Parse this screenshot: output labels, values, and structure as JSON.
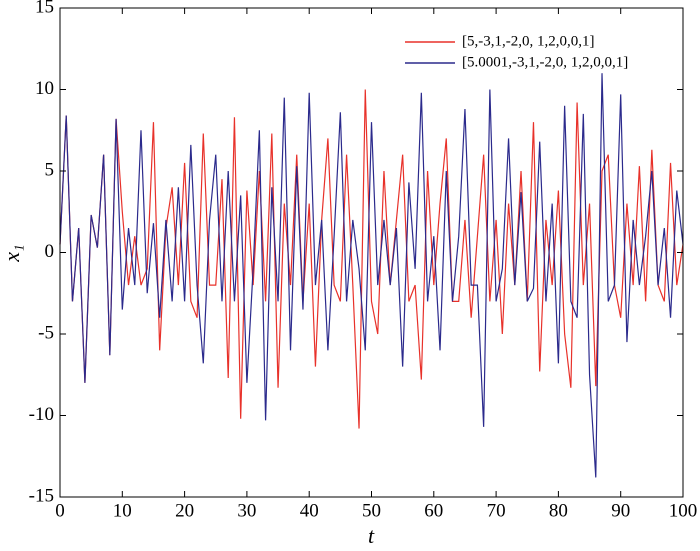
{
  "chart_data": {
    "type": "line",
    "xlabel": "t",
    "ylabel": "x₁",
    "x": [
      0,
      1,
      2,
      3,
      4,
      5,
      6,
      7,
      8,
      9,
      10,
      11,
      12,
      13,
      14,
      15,
      16,
      17,
      18,
      19,
      20,
      21,
      22,
      23,
      24,
      25,
      26,
      27,
      28,
      29,
      30,
      31,
      32,
      33,
      34,
      35,
      36,
      37,
      38,
      39,
      40,
      41,
      42,
      43,
      44,
      45,
      46,
      47,
      48,
      49,
      50,
      51,
      52,
      53,
      54,
      55,
      56,
      57,
      58,
      59,
      60,
      61,
      62,
      63,
      64,
      65,
      66,
      67,
      68,
      69,
      70,
      71,
      72,
      73,
      74,
      75,
      76,
      77,
      78,
      79,
      80,
      81,
      82,
      83,
      84,
      85,
      86,
      87,
      88,
      89,
      90,
      91,
      92,
      93,
      94,
      95,
      96,
      97,
      98,
      99,
      100
    ],
    "series": [
      {
        "name": "[5,-3,1,-2,0, 1,2,0,0,1]",
        "color": "#e8312a",
        "values": [
          0.5,
          8.4,
          -3,
          1.5,
          -8,
          2.3,
          0.3,
          6,
          -6.3,
          8.2,
          2.5,
          -2,
          1,
          -2,
          -1,
          8,
          -6,
          1.5,
          4,
          -2,
          5.5,
          -3,
          -4,
          7.3,
          -2,
          -2,
          4.5,
          -7.7,
          8.3,
          -10.2,
          3.8,
          -2,
          5,
          -3,
          7.3,
          -8.3,
          3,
          -2,
          6,
          -3,
          3,
          -7,
          2,
          7,
          -2,
          -3,
          6,
          -2,
          -10.8,
          10,
          -3,
          -5,
          5,
          -2,
          2,
          6,
          -3,
          -2,
          -7.8,
          5,
          -2,
          3,
          7,
          -3,
          -3,
          2,
          -4,
          1,
          6,
          -3,
          2,
          -5,
          3,
          -2,
          5,
          -3,
          8,
          -7.3,
          2,
          -2,
          3.8,
          -5,
          -8.3,
          9.2,
          -2,
          3,
          -8.2,
          5,
          6,
          -2,
          -4,
          3,
          -2,
          5.3,
          -3,
          6.3,
          -2,
          -3,
          5.5,
          -2,
          0.5
        ]
      },
      {
        "name": "[5.0001,-3,1,-2,0, 1,2,0,0,1]",
        "color": "#2b2a8c",
        "values": [
          0.5,
          8.4,
          -3,
          1.5,
          -8,
          2.3,
          0.3,
          6,
          -6.3,
          8.2,
          -3.5,
          1.5,
          -2,
          7.5,
          -2.5,
          1.8,
          -4,
          2,
          -3,
          4,
          -3,
          6.6,
          -2,
          -6.8,
          2,
          6,
          -3,
          5,
          -3,
          3.5,
          -8,
          -1,
          7.5,
          -10.3,
          4,
          -3,
          9.5,
          -6,
          5.3,
          -3.5,
          9.8,
          -2,
          2,
          -6,
          1,
          8.6,
          -3,
          2,
          -1,
          -6,
          8,
          -2,
          2,
          -2,
          1.5,
          -7,
          4.3,
          -1,
          9.8,
          -3,
          1,
          -6,
          5,
          -3,
          1,
          8.8,
          -2,
          -2,
          -10.7,
          10,
          -3,
          -1,
          7,
          -2,
          3.7,
          -3,
          -2.2,
          6.8,
          -3,
          3,
          -6.8,
          9,
          -3,
          -4,
          8.5,
          -7.5,
          -13.8,
          11,
          -3,
          -2,
          9.7,
          -5.5,
          2,
          -2,
          1,
          5,
          -2,
          1.5,
          -4,
          3.8,
          0.5
        ]
      }
    ],
    "xlim": [
      0,
      100
    ],
    "xticks": [
      0,
      10,
      20,
      30,
      40,
      50,
      60,
      70,
      80,
      90,
      100
    ],
    "ylim": [
      -15,
      15
    ],
    "yticks": [
      -15,
      -10,
      -5,
      0,
      5,
      10,
      15
    ],
    "legend": "upper right",
    "grid": false
  }
}
